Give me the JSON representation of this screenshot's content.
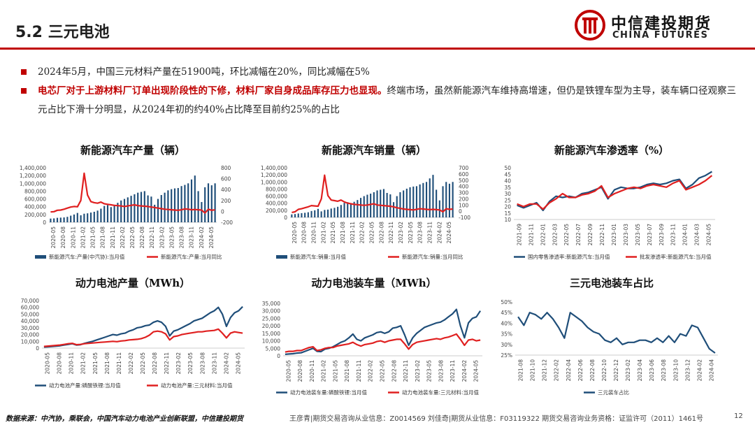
{
  "header": {
    "title": "5.2 三元电池",
    "logo_cn": "中信建投期货",
    "logo_en": "CHINA FUTURES"
  },
  "bullets": {
    "b1": "2024年5月，中国三元材料产量在51900吨，环比减幅在20%，同比减幅在5%",
    "b2_red": "电芯厂对于上游材料厂订单出现阶段性的下修，材料厂家自身成品库存压力也显现。",
    "b2_rest": "终端市场，虽然新能源汽车维持高增速，但仍是铁锂车型为主导，装车辆口径观察三元占比下滑十分明显，从2024年初的约40%占比降至目前约25%的占比"
  },
  "footer": {
    "source": "数据来源：中汽协，乘联会，中国汽车动力电池产业创新联盟，中信建投期货",
    "analysts": "王彦青|期货交易咨询从业信息：Z0014569    刘佳奇|期货从业信息：F03119322    期货交易咨询业务资格：证监许可（2011）1461号",
    "page": "12"
  },
  "colors": {
    "accent": "#c00000",
    "navy": "#1f4e79",
    "red": "#e02020"
  },
  "chart_data": [
    {
      "type": "bar",
      "title": "新能源汽车产量（辆）",
      "x_ticks": [
        "2020-05",
        "2020-08",
        "2020-11",
        "2021-02",
        "2021-05",
        "2021-08",
        "2021-11",
        "2022-02",
        "2022-05",
        "2022-08",
        "2022-11",
        "2023-02",
        "2023-05",
        "2023-08",
        "2023-11",
        "2024-02",
        "2024-05"
      ],
      "ylim": [
        0,
        1400000
      ],
      "y_ticks": [
        "0",
        "200,000",
        "400,000",
        "600,000",
        "800,000",
        "1,000,000",
        "1,200,000",
        "1,400,000"
      ],
      "y2lim": [
        -200,
        800
      ],
      "y2_ticks": [
        "-200",
        "0",
        "200",
        "400",
        "600",
        "800"
      ],
      "series": [
        {
          "name": "新能源汽车:产量(中汽协):当月值",
          "type": "bar",
          "color": "#1f4e79",
          "values": [
            95000,
            100000,
            115000,
            120000,
            125000,
            140000,
            170000,
            200000,
            240000,
            180000,
            220000,
            230000,
            250000,
            270000,
            300000,
            350000,
            420000,
            440000,
            390000,
            450000,
            500000,
            560000,
            600000,
            640000,
            680000,
            720000,
            760000,
            780000,
            800000,
            690000,
            660000,
            450000,
            600000,
            700000,
            760000,
            820000,
            850000,
            870000,
            880000,
            930000,
            960000,
            1000000,
            1100000,
            1200000,
            800000,
            520000,
            900000,
            1000000,
            950000,
            1000000
          ]
        },
        {
          "name": "新能源汽车:产量:当月同比",
          "type": "line",
          "axis": "right",
          "color": "#e02020",
          "values": [
            -10,
            -5,
            20,
            25,
            40,
            60,
            80,
            90,
            85,
            200,
            700,
            300,
            180,
            160,
            150,
            170,
            140,
            130,
            120,
            110,
            105,
            100,
            90,
            100,
            110,
            120,
            105,
            100,
            95,
            90,
            80,
            70,
            60,
            50,
            40,
            35,
            30,
            25,
            20,
            30,
            45,
            40,
            30,
            35,
            30,
            25,
            -30,
            40,
            20,
            30
          ]
        }
      ]
    },
    {
      "type": "bar",
      "title": "新能源汽车销量（辆）",
      "x_ticks": [
        "2020-05",
        "2020-08",
        "2020-11",
        "2021-02",
        "2021-05",
        "2021-08",
        "2021-11",
        "2022-02",
        "2022-05",
        "2022-08",
        "2022-11",
        "2023-02",
        "2023-05",
        "2023-08",
        "2023-11",
        "2024-02",
        "2024-05"
      ],
      "ylim": [
        0,
        1400000
      ],
      "y_ticks": [
        "0",
        "200,000",
        "400,000",
        "600,000",
        "800,000",
        "1,000,000",
        "1,200,000",
        "1,400,000"
      ],
      "y2lim": [
        -100,
        700
      ],
      "y2_ticks": [
        "-100",
        "0",
        "100",
        "200",
        "300",
        "400",
        "500",
        "600",
        "700"
      ],
      "series": [
        {
          "name": "新能源汽车:销量:当月值",
          "type": "bar",
          "color": "#1f4e79",
          "values": [
            85000,
            95000,
            110000,
            120000,
            130000,
            145000,
            180000,
            200000,
            240000,
            170000,
            210000,
            220000,
            250000,
            270000,
            300000,
            350000,
            410000,
            430000,
            380000,
            440000,
            490000,
            550000,
            600000,
            640000,
            670000,
            710000,
            760000,
            780000,
            800000,
            690000,
            650000,
            430000,
            600000,
            710000,
            760000,
            810000,
            850000,
            870000,
            880000,
            930000,
            970000,
            1000000,
            1100000,
            1200000,
            780000,
            480000,
            880000,
            1000000,
            950000,
            1000000
          ]
        },
        {
          "name": "新能源汽车:销量:当月同比",
          "type": "line",
          "axis": "right",
          "color": "#e02020",
          "values": [
            -20,
            -10,
            30,
            40,
            55,
            70,
            90,
            85,
            80,
            200,
            580,
            250,
            180,
            170,
            160,
            180,
            150,
            130,
            120,
            110,
            105,
            100,
            95,
            100,
            110,
            120,
            100,
            95,
            90,
            85,
            80,
            70,
            55,
            45,
            35,
            30,
            25,
            20,
            30,
            40,
            35,
            30,
            25,
            30,
            25,
            20,
            -10,
            40,
            30,
            35
          ]
        }
      ]
    },
    {
      "type": "line",
      "title": "新能源汽车渗透率（%）",
      "x_ticks": [
        "2021-09",
        "2021-11",
        "2022-01",
        "2022-03",
        "2022-05",
        "2022-07",
        "2022-09",
        "2022-11",
        "2023-01",
        "2023-03",
        "2023-05",
        "2023-07",
        "2023-09",
        "2023-11",
        "2024-01",
        "2024-03",
        "2024-05"
      ],
      "ylim": [
        10,
        50
      ],
      "y_ticks": [
        "10",
        "15",
        "20",
        "25",
        "30",
        "35",
        "40",
        "45",
        "50"
      ],
      "series": [
        {
          "name": "国内零售渗透率:新能源汽车:当月值",
          "color": "#1f4e79",
          "values": [
            21,
            19,
            21,
            23,
            17,
            24,
            28,
            27,
            28,
            27,
            30,
            31,
            33,
            35,
            26,
            33,
            35,
            34,
            34,
            35,
            37,
            38,
            37,
            38,
            40,
            41,
            34,
            37,
            42,
            44,
            47
          ]
        },
        {
          "name": "批发渗透率:新能源汽车:当月值",
          "color": "#e02020",
          "values": [
            22,
            20,
            22,
            22,
            18,
            23,
            26,
            30,
            27,
            27,
            29,
            30,
            32,
            36,
            27,
            30,
            32,
            34,
            35,
            34,
            36,
            37,
            36,
            35,
            38,
            40,
            33,
            35,
            37,
            40,
            44
          ]
        }
      ]
    },
    {
      "type": "line",
      "title": "动力电池产量（MWh）",
      "x_ticks": [
        "2020-05",
        "2020-08",
        "2020-11",
        "2021-02",
        "2021-05",
        "2021-08",
        "2021-11",
        "2022-02",
        "2022-05",
        "2022-08",
        "2022-11",
        "2023-02",
        "2023-05",
        "2023-08",
        "2023-11",
        "2024-02",
        "2024-05"
      ],
      "ylim": [
        0,
        70000
      ],
      "y_ticks": [
        "0",
        "10,000",
        "20,000",
        "30,000",
        "40,000",
        "50,000",
        "60,000",
        "70,000"
      ],
      "series": [
        {
          "name": "动力电池产量:磷酸铁锂:当月值",
          "color": "#1f4e79",
          "values": [
            1500,
            2000,
            2500,
            3000,
            3500,
            4500,
            5500,
            6500,
            4500,
            5000,
            7000,
            8500,
            10000,
            12000,
            14000,
            16000,
            18000,
            20000,
            19000,
            21000,
            22000,
            25000,
            27000,
            30000,
            31000,
            33000,
            34000,
            38000,
            40000,
            38000,
            32000,
            18000,
            25000,
            27000,
            30000,
            33000,
            36000,
            40000,
            42000,
            44000,
            48000,
            52000,
            55000,
            60000,
            50000,
            32000,
            45000,
            52000,
            55000,
            61000
          ]
        },
        {
          "name": "动力电池产量:三元材料:当月值",
          "color": "#e02020",
          "values": [
            2500,
            3000,
            3500,
            4000,
            4500,
            5500,
            6500,
            7000,
            5000,
            5500,
            6500,
            7000,
            7500,
            8000,
            8500,
            9000,
            9500,
            10000,
            9500,
            10500,
            11000,
            12000,
            12500,
            13000,
            14000,
            16000,
            19000,
            24000,
            25000,
            24000,
            21000,
            12000,
            17000,
            18000,
            20000,
            21000,
            22000,
            23000,
            24000,
            24000,
            25000,
            25500,
            26000,
            28000,
            22000,
            15000,
            22000,
            24000,
            23000,
            22000
          ]
        }
      ]
    },
    {
      "type": "line",
      "title": "动力电池装车量（MWh）",
      "x_ticks": [
        "2020-05",
        "2020-08",
        "2020-11",
        "2021-02",
        "2021-05",
        "2021-08",
        "2021-11",
        "2022-02",
        "2022-05",
        "2022-08",
        "2022-11",
        "2023-02",
        "2023-05",
        "2023-08",
        "2023-11",
        "2024-02",
        "2024-05"
      ],
      "ylim": [
        0,
        35000
      ],
      "y_ticks": [
        "0",
        "5,000",
        "10,000",
        "15,000",
        "20,000",
        "25,000",
        "30,000",
        "35,000"
      ],
      "series": [
        {
          "name": "动力电池装车量:磷酸铁锂:当月值",
          "color": "#1f4e79",
          "values": [
            1000,
            1200,
            1400,
            1800,
            2000,
            3000,
            4000,
            5000,
            3000,
            2800,
            4500,
            5000,
            6000,
            7500,
            9000,
            10000,
            12000,
            14500,
            11000,
            10000,
            12000,
            13000,
            14000,
            15500,
            16000,
            15000,
            16000,
            18500,
            19000,
            20000,
            14000,
            7000,
            12000,
            15000,
            17000,
            19000,
            20000,
            21000,
            22000,
            22500,
            24000,
            26000,
            28000,
            31000,
            20000,
            12000,
            22000,
            25000,
            26000,
            30000
          ]
        },
        {
          "name": "动力电池装车量:三元材料:当月值",
          "color": "#e02020",
          "values": [
            2500,
            3000,
            3000,
            3500,
            3500,
            4500,
            5500,
            6000,
            3500,
            4000,
            5000,
            5500,
            5500,
            6500,
            7000,
            7500,
            8000,
            9000,
            7500,
            6500,
            7500,
            8000,
            8500,
            9500,
            10000,
            9000,
            10000,
            10500,
            11000,
            11000,
            8000,
            4500,
            7500,
            9000,
            9500,
            10000,
            10500,
            11000,
            11500,
            11000,
            12000,
            12500,
            13500,
            14500,
            11000,
            7000,
            10500,
            11000,
            10000,
            10500
          ]
        }
      ]
    },
    {
      "type": "line",
      "title": "三元电池装车占比",
      "x_ticks": [
        "2021-08",
        "2021-10",
        "2021-12",
        "2022-02",
        "2022-04",
        "2022-06",
        "2022-08",
        "2022-10",
        "2022-12",
        "2023-02",
        "2023-04",
        "2023-06",
        "2023-08",
        "2023-10",
        "2023-12",
        "2024-02",
        "2024-04"
      ],
      "ylim": [
        25,
        50
      ],
      "y_ticks": [
        "25%",
        "30%",
        "35%",
        "40%",
        "45%",
        "50%"
      ],
      "series": [
        {
          "name": "三元装车占比",
          "color": "#1f4e79",
          "values": [
            43,
            39,
            45,
            44,
            42,
            45,
            42,
            38,
            33,
            45,
            43,
            41,
            38,
            36,
            35,
            32,
            31,
            33,
            30,
            31,
            31,
            32,
            32,
            31,
            33,
            31,
            34,
            31,
            35,
            34,
            39,
            38,
            33,
            28,
            26
          ]
        }
      ]
    }
  ]
}
